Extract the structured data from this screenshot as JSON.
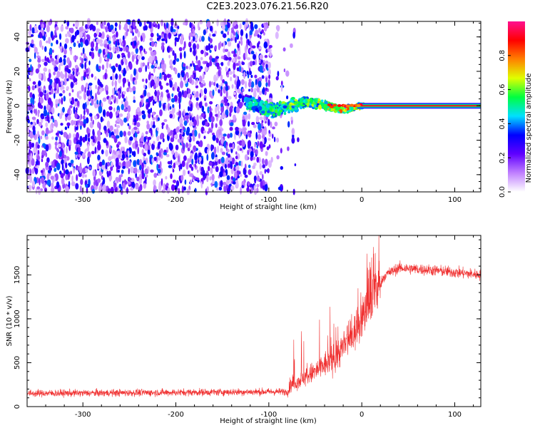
{
  "title": "C2E3.2023.076.21.56.R20",
  "chart_data": [
    {
      "type": "heatmap",
      "xlabel": "Height of straight line (km)",
      "ylabel": "Frequency (Hz)",
      "xlim": [
        -360,
        128
      ],
      "ylim": [
        -50,
        49
      ],
      "xticks": [
        -300,
        -200,
        -100,
        0,
        100
      ],
      "yticks": [
        -40,
        -20,
        0,
        20,
        40
      ],
      "colorbar": {
        "label": "Normalized spectral amplitude",
        "range": [
          0.0,
          1.0
        ],
        "ticks": [
          "0.0",
          "0.2",
          "0.4",
          "0.6",
          "0.8"
        ],
        "tick_values": [
          0.0,
          0.2,
          0.4,
          0.6,
          0.8
        ],
        "colors": [
          "#ffffff",
          "#c080ff",
          "#6000ff",
          "#0000ff",
          "#00e0ff",
          "#00ff40",
          "#e0ff00",
          "#ff8000",
          "#ff0000",
          "#ff1090"
        ]
      },
      "features": {
        "noise_region_x": [
          -360,
          -98
        ],
        "signal_line_freq": 0,
        "signal_start_x": -125,
        "strong_signal_start_x": -5
      }
    },
    {
      "type": "line",
      "xlabel": "Height of straight line (km)",
      "ylabel": "SNR (10 * v/v)",
      "xlim": [
        -360,
        128
      ],
      "ylim": [
        0,
        1950
      ],
      "xticks": [
        -300,
        -200,
        -100,
        0,
        100
      ],
      "yticks": [
        0,
        500,
        1000,
        1500
      ],
      "color": "#f03030",
      "profile": {
        "x": [
          -360,
          -80,
          -75,
          -50,
          -30,
          -10,
          10,
          25,
          40,
          80,
          128
        ],
        "y": [
          150,
          170,
          250,
          400,
          550,
          800,
          1200,
          1500,
          1580,
          1550,
          1500
        ]
      }
    }
  ]
}
